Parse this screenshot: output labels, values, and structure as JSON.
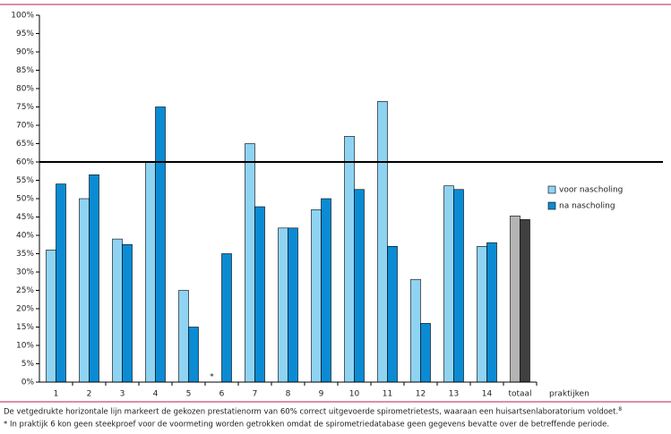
{
  "chart_data": {
    "type": "bar",
    "categories": [
      "1",
      "2",
      "3",
      "4",
      "5",
      "6",
      "7",
      "8",
      "9",
      "10",
      "11",
      "12",
      "13",
      "14",
      "totaal"
    ],
    "series": [
      {
        "name": "voor nascholing",
        "color": "#8fd3f3",
        "colors": [
          "#8fd3f3",
          "#8fd3f3",
          "#8fd3f3",
          "#8fd3f3",
          "#8fd3f3",
          "#8fd3f3",
          "#8fd3f3",
          "#8fd3f3",
          "#8fd3f3",
          "#8fd3f3",
          "#8fd3f3",
          "#8fd3f3",
          "#8fd3f3",
          "#8fd3f3",
          "#b4b4b4"
        ],
        "values": [
          36,
          50,
          39,
          60,
          25,
          null,
          65,
          42,
          47,
          67,
          76.5,
          28,
          53.5,
          37,
          45.3
        ]
      },
      {
        "name": "na nascholing",
        "color": "#0b8bd3",
        "colors": [
          "#0b8bd3",
          "#0b8bd3",
          "#0b8bd3",
          "#0b8bd3",
          "#0b8bd3",
          "#0b8bd3",
          "#0b8bd3",
          "#0b8bd3",
          "#0b8bd3",
          "#0b8bd3",
          "#0b8bd3",
          "#0b8bd3",
          "#0b8bd3",
          "#0b8bd3",
          "#404040"
        ],
        "values": [
          54,
          56.5,
          37.5,
          75,
          15,
          35,
          47.8,
          42,
          50,
          52.5,
          37,
          16,
          52.5,
          38,
          44.3
        ]
      }
    ],
    "ylim": [
      0,
      100
    ],
    "yticks": [
      {
        "value": 0,
        "label": "0%"
      },
      {
        "value": 5,
        "label": "5%"
      },
      {
        "value": 10,
        "label": "10%"
      },
      {
        "value": 15,
        "label": "15%"
      },
      {
        "value": 20,
        "label": "20%"
      },
      {
        "value": 25,
        "label": "25%"
      },
      {
        "value": 30,
        "label": "30%"
      },
      {
        "value": 35,
        "label": "35%"
      },
      {
        "value": 40,
        "label": "40%"
      },
      {
        "value": 45,
        "label": "45%"
      },
      {
        "value": 50,
        "label": "50%"
      },
      {
        "value": 55,
        "label": "55%"
      },
      {
        "value": 60,
        "label": "60%"
      },
      {
        "value": 65,
        "label": "65%"
      },
      {
        "value": 70,
        "label": "70%"
      },
      {
        "value": 75,
        "label": "75%"
      },
      {
        "value": 80,
        "label": "80%"
      },
      {
        "value": 85,
        "label": "85%"
      },
      {
        "value": 90,
        "label": "90%"
      },
      {
        "value": 95,
        "label": "95%"
      },
      {
        "value": 100,
        "label": "100%"
      }
    ],
    "reference_line": 60,
    "x_label": "praktijken",
    "annotation": {
      "category_index": 5,
      "text": "*"
    },
    "legend": "right",
    "footnotes": [
      "De vetgedrukte horizontale lijn markeert de gekozen prestatienorm van 60% correct uitgevoerde spirometrietests, waaraan een huisartsenlaboratorium voldoet.",
      "* In praktijk 6 kon geen steekproef voor de voormeting worden getrokken omdat de spirometriedatabase geen gegevens bevatte over de betreffende periode."
    ],
    "footnote_ref": "8"
  }
}
